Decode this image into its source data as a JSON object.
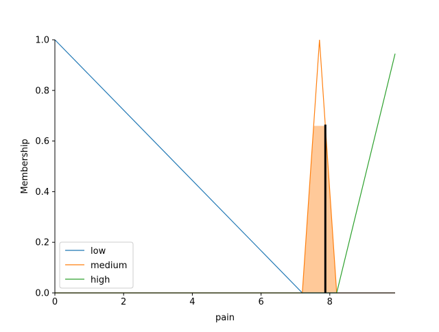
{
  "chart_data": {
    "type": "line",
    "title": "",
    "xlabel": "pain",
    "ylabel": "Membership",
    "xlim": [
      0,
      9.9
    ],
    "ylim": [
      0,
      1.0
    ],
    "x_ticks": [
      0,
      2,
      4,
      6,
      8
    ],
    "x_tick_labels": [
      "0",
      "2",
      "4",
      "6",
      "8"
    ],
    "y_ticks": [
      0.0,
      0.2,
      0.4,
      0.6,
      0.8,
      1.0
    ],
    "y_tick_labels": [
      "0.0",
      "0.2",
      "0.4",
      "0.6",
      "0.8",
      "1.0"
    ],
    "grid": false,
    "legend_position": "lower-left",
    "series": [
      {
        "name": "low",
        "color": "#1f77b4",
        "x": [
          0,
          7.2,
          9.9
        ],
        "y": [
          1.0,
          0.0,
          0.0
        ]
      },
      {
        "name": "medium",
        "color": "#ff7f0e",
        "x": [
          0,
          7.2,
          7.7,
          8.2,
          9.9
        ],
        "y": [
          0.0,
          0.0,
          1.0,
          0.0,
          0.0
        ]
      },
      {
        "name": "high",
        "color": "#2ca02c",
        "x": [
          0,
          8.2,
          9.9
        ],
        "y": [
          0.0,
          0.0,
          0.945
        ]
      }
    ],
    "activation": {
      "series": "medium",
      "level": 0.66,
      "fill_color": "#ffc999",
      "x": [
        7.2,
        7.53,
        7.87,
        8.2
      ],
      "y": [
        0.0,
        0.66,
        0.66,
        0.0
      ]
    },
    "output_line": {
      "x": 7.87,
      "y": [
        0.0,
        0.665
      ],
      "color": "#000000"
    }
  }
}
